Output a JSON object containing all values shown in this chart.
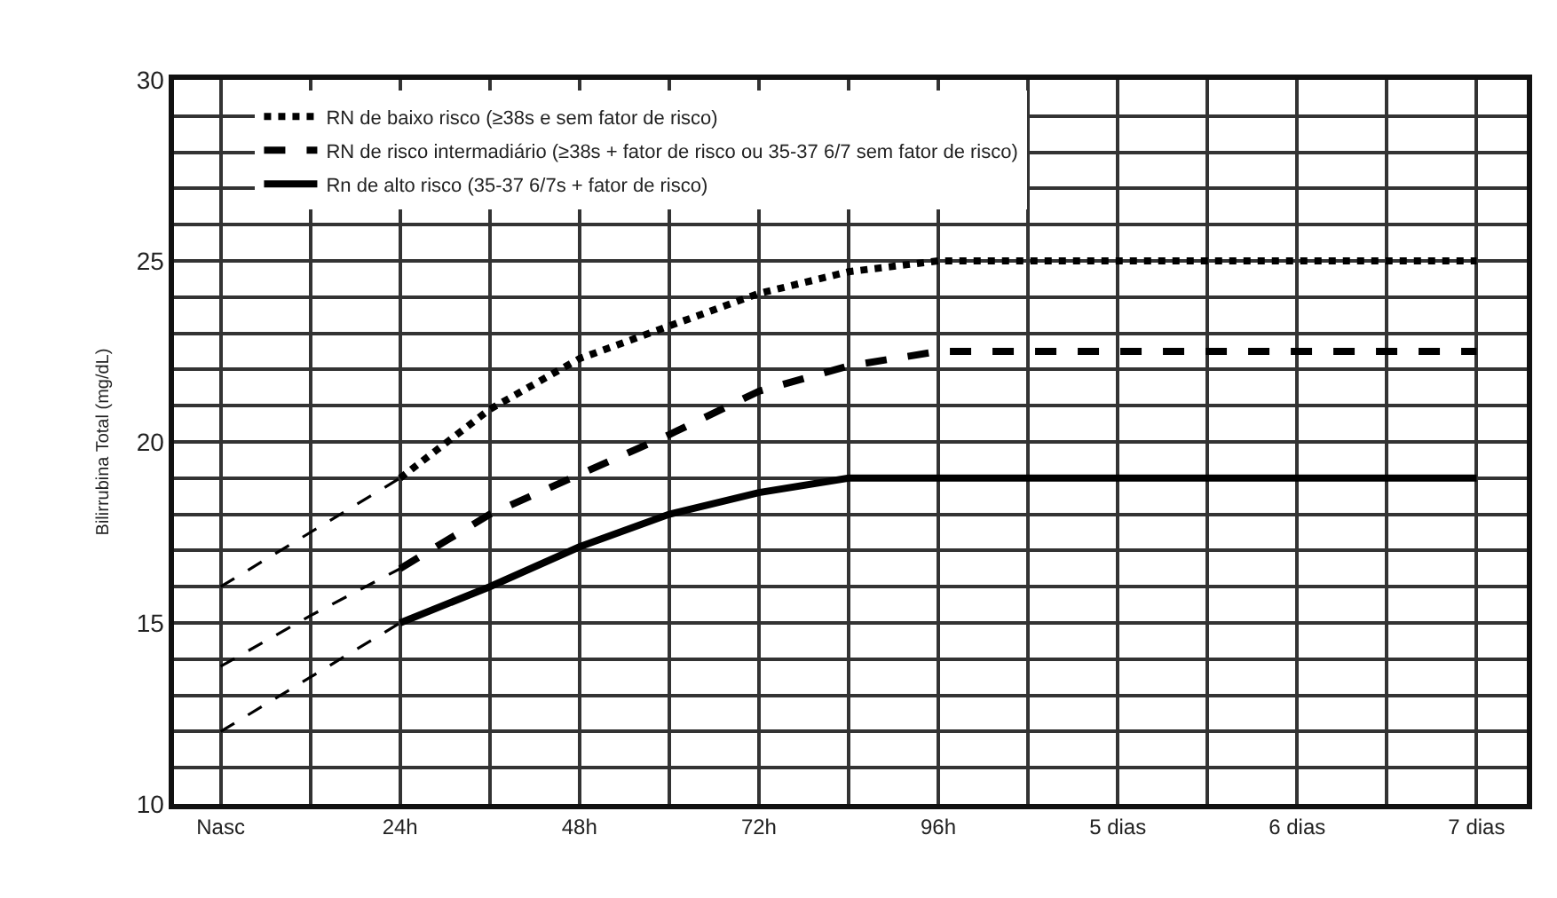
{
  "chart_data": {
    "type": "line",
    "ylabel": "Bilirrubina Total (mg/dL)",
    "categories": [
      "Nasc",
      null,
      "24h",
      null,
      "48h",
      null,
      "72h",
      null,
      "96h",
      null,
      "5 dias",
      null,
      "6 dias",
      null,
      "7 dias"
    ],
    "ylim": [
      10,
      30
    ],
    "yticks": [
      10,
      {
        "value": 11,
        "label": null
      },
      {
        "value": 12,
        "label": null
      },
      {
        "value": 13,
        "label": null
      },
      {
        "value": 14,
        "label": null
      },
      15,
      {
        "value": 16,
        "label": null
      },
      {
        "value": 17,
        "label": null
      },
      {
        "value": 18,
        "label": null
      },
      {
        "value": 19,
        "label": null
      },
      20,
      {
        "value": 21,
        "label": null
      },
      {
        "value": 22,
        "label": null
      },
      {
        "value": 23,
        "label": null
      },
      {
        "value": 24,
        "label": null
      },
      25,
      {
        "value": 26,
        "label": null
      },
      {
        "value": 27,
        "label": null
      },
      {
        "value": 28,
        "label": null
      },
      {
        "value": 29,
        "label": null
      },
      30
    ],
    "grid": true,
    "legend": "top left",
    "marker": "none",
    "series": [
      {
        "name": "RN de baixo risco (≥38s e sem fator de risco)",
        "color": "#000000",
        "line_style": "dotted",
        "values": [
          null,
          null,
          19,
          20.9,
          22.3,
          23.2,
          24.1,
          24.7,
          25,
          25,
          25,
          25,
          25,
          25,
          25
        ]
      },
      {
        "name": "RN de risco intermadiário (≥38s + fator de risco ou 35-37 6/7 sem fator de risco)",
        "color": "#000000",
        "line_style": "dashed",
        "values": [
          null,
          null,
          16.5,
          18,
          19.1,
          20.2,
          21.4,
          22.1,
          22.5,
          22.5,
          22.5,
          22.5,
          22.5,
          22.5,
          22.5
        ]
      },
      {
        "name": "Rn de alto risco (35-37 6/7s + fator de risco)",
        "color": "#000000",
        "line_style": "solid",
        "values": [
          null,
          null,
          15,
          16,
          17.1,
          18,
          18.6,
          19,
          19,
          19,
          19,
          19,
          19,
          19,
          19
        ]
      },
      {
        "color": "#000000",
        "line_style": "dashed",
        "values": [
          16,
          17.5,
          19,
          null,
          null,
          null,
          null,
          null,
          null,
          null,
          null,
          null,
          null,
          null,
          null
        ]
      },
      {
        "color": "#000000",
        "line_style": "dashed",
        "values": [
          13.8,
          15.2,
          16.5,
          null,
          null,
          null,
          null,
          null,
          null,
          null,
          null,
          null,
          null,
          null,
          null
        ]
      },
      {
        "color": "#000000",
        "line_style": "dashed",
        "values": [
          12,
          13.5,
          15,
          null,
          null,
          null,
          null,
          null,
          null,
          null,
          null,
          null,
          null,
          null,
          null
        ]
      }
    ]
  }
}
